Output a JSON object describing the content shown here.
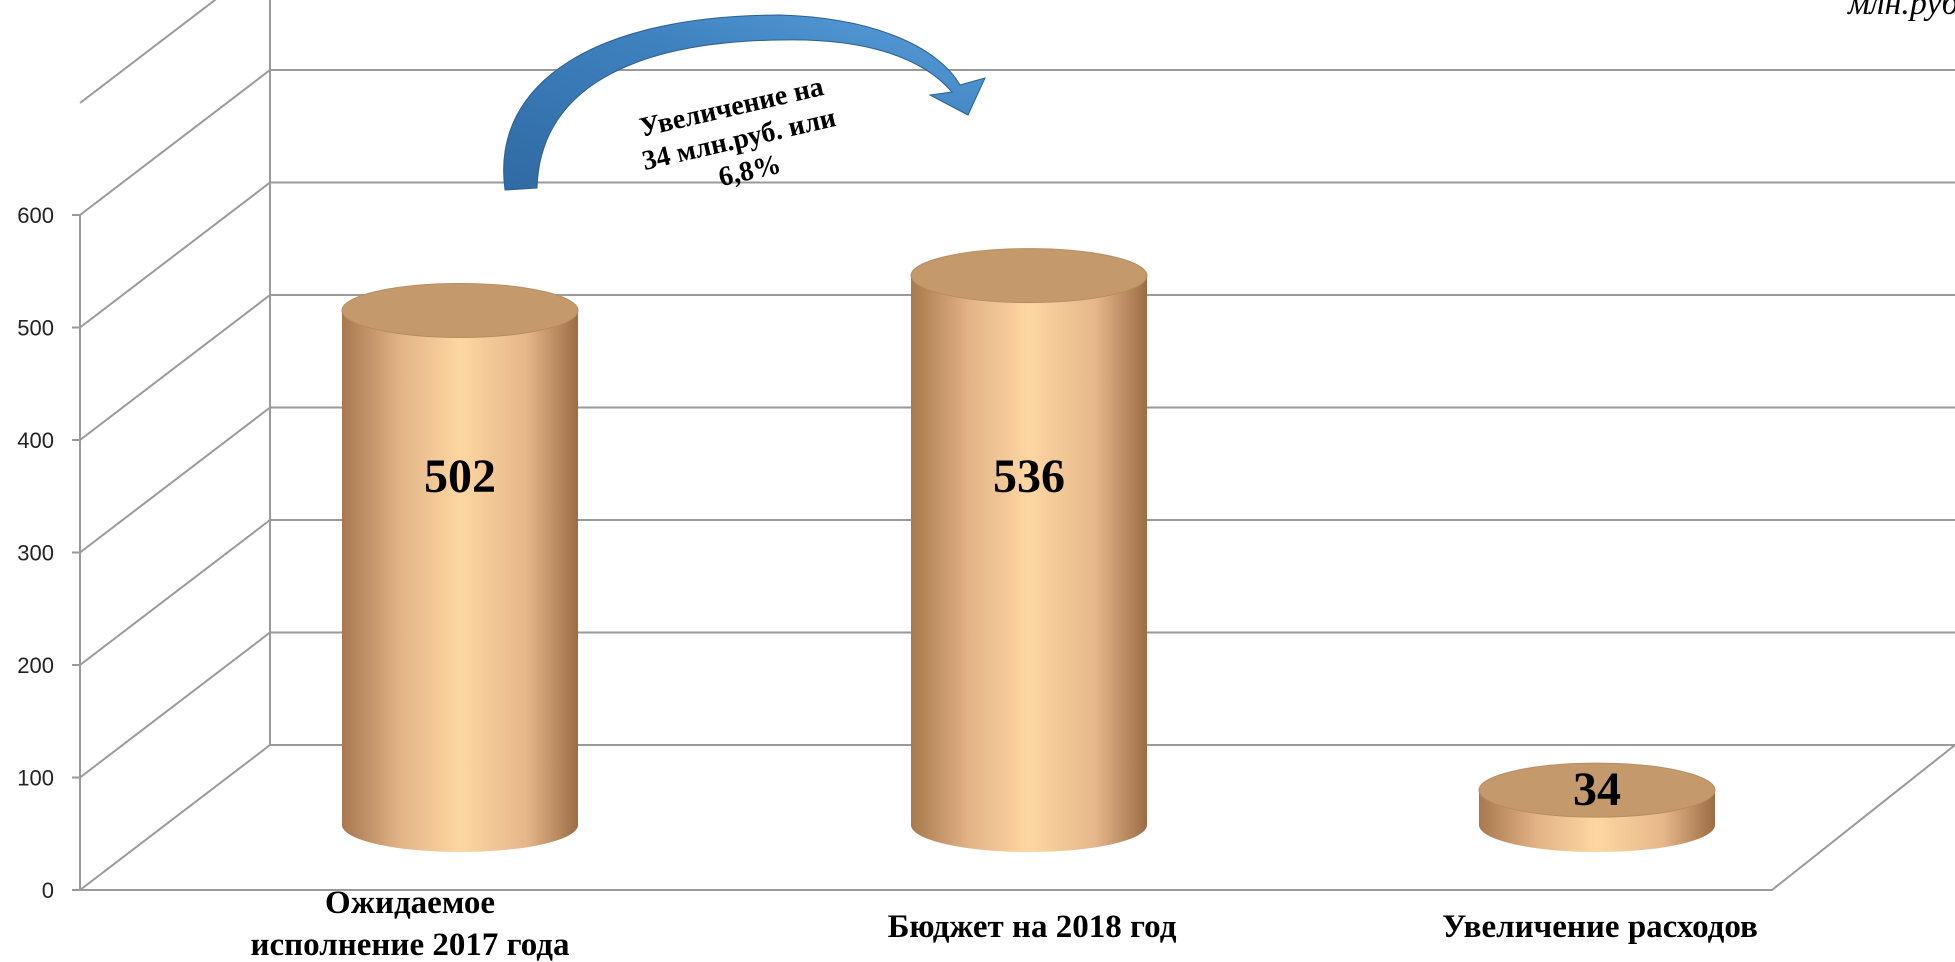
{
  "chart_data": {
    "type": "bar",
    "categories": [
      "Ожидаемое исполнение 2017 года",
      "Бюджет на 2018 год",
      "Увеличение расходов"
    ],
    "category_lines": [
      [
        "Ожидаемое",
        "исполнение 2017 года"
      ],
      [
        "Бюджет на 2018 год"
      ],
      [
        "Увеличение расходов"
      ]
    ],
    "values": [
      502,
      536,
      34
    ],
    "data_labels": [
      "502",
      "536",
      "34"
    ],
    "ylim": [
      0,
      600
    ],
    "yticks": [
      0,
      100,
      200,
      300,
      400,
      500,
      600
    ],
    "grid": true,
    "unit_label": "млн.руб.",
    "annotation": {
      "lines": [
        "Увеличение на",
        "34 млн.руб. или",
        "6,8%"
      ]
    },
    "colors": {
      "bar_light": "#fdd7a1",
      "bar_dark": "#a8784e",
      "bar_top": "#c49a6c",
      "arrow": "#3f82c0",
      "grid": "#9a9a9a"
    }
  }
}
